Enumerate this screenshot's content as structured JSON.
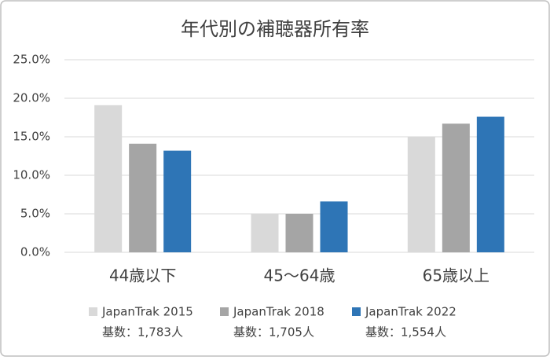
{
  "chart_data": {
    "type": "bar",
    "title": "年代別の補聴器所有率",
    "categories": [
      "44歳以下",
      "45〜64歳",
      "65歳以上"
    ],
    "series": [
      {
        "name": "JapanTrak 2015",
        "base": "基数：1,783人",
        "color": "#d9d9d9",
        "values": [
          19.1,
          5.0,
          15.0
        ]
      },
      {
        "name": "JapanTrak 2018",
        "base": "基数：1,705人",
        "color": "#a5a5a5",
        "values": [
          14.1,
          5.0,
          16.7
        ]
      },
      {
        "name": "JapanTrak 2022",
        "base": "基数：1,554人",
        "color": "#2e75b6",
        "values": [
          13.2,
          6.6,
          17.6
        ]
      }
    ],
    "ylim": [
      0,
      25
    ],
    "yticks": [
      {
        "value": 0,
        "label": "0.0%"
      },
      {
        "value": 5,
        "label": "5.0%"
      },
      {
        "value": 10,
        "label": "10.0%"
      },
      {
        "value": 15,
        "label": "15.0%"
      },
      {
        "value": 20,
        "label": "20.0%"
      },
      {
        "value": 25,
        "label": "25.0%"
      }
    ],
    "grid": true,
    "legend": "bottom"
  }
}
